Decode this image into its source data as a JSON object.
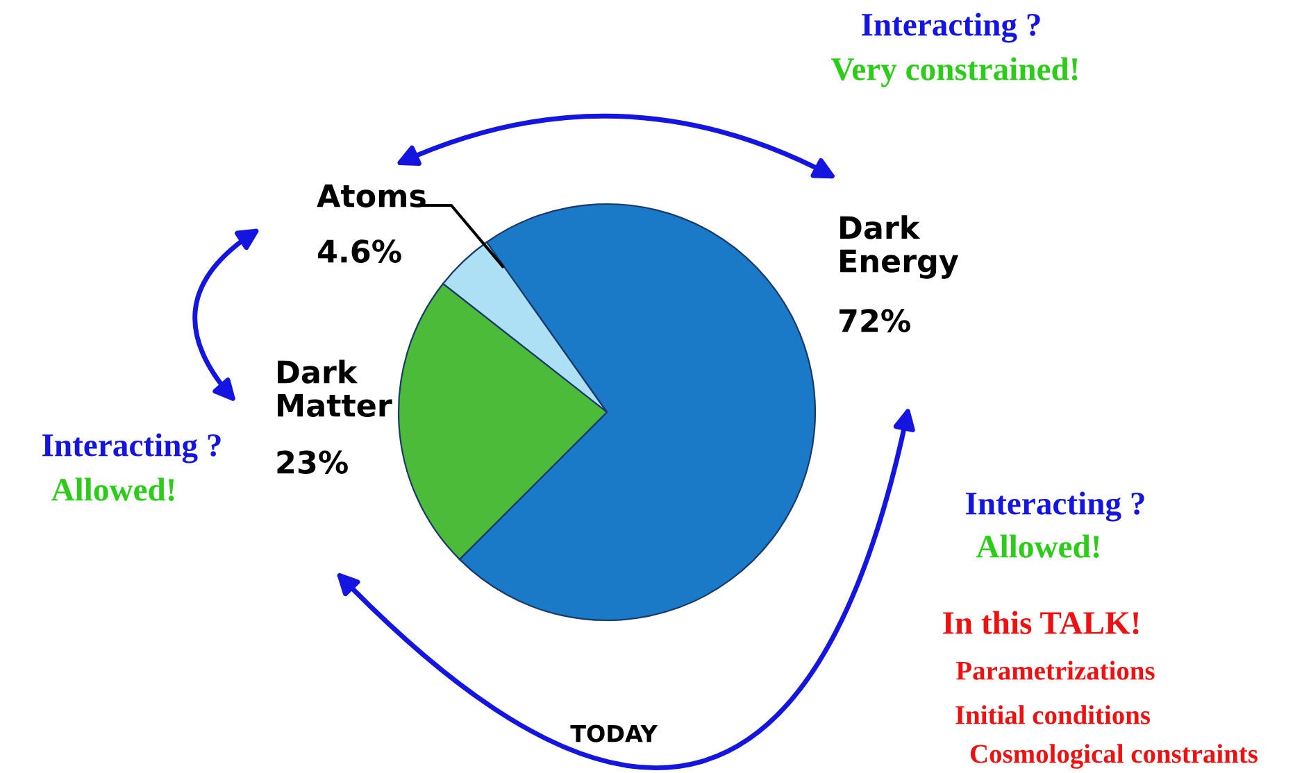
{
  "chart_data": {
    "type": "pie",
    "categories": [
      "Dark Energy",
      "Atoms",
      "Dark Matter"
    ],
    "value_labels": [
      "72%",
      "4.6%",
      "23%"
    ],
    "values": [
      72,
      4.6,
      23
    ],
    "colors": [
      "#1a7ac8",
      "#aee0f5",
      "#4cbb3a"
    ],
    "annotations": [
      "Interacting ?",
      "Very constrained!",
      "Interacting ?",
      "Allowed!",
      "Interacting ?",
      "Allowed!",
      "In this TALK!",
      "Parametrizations",
      "Initial conditions",
      "Cosmological constraints",
      "TODAY"
    ],
    "legend": false
  }
}
